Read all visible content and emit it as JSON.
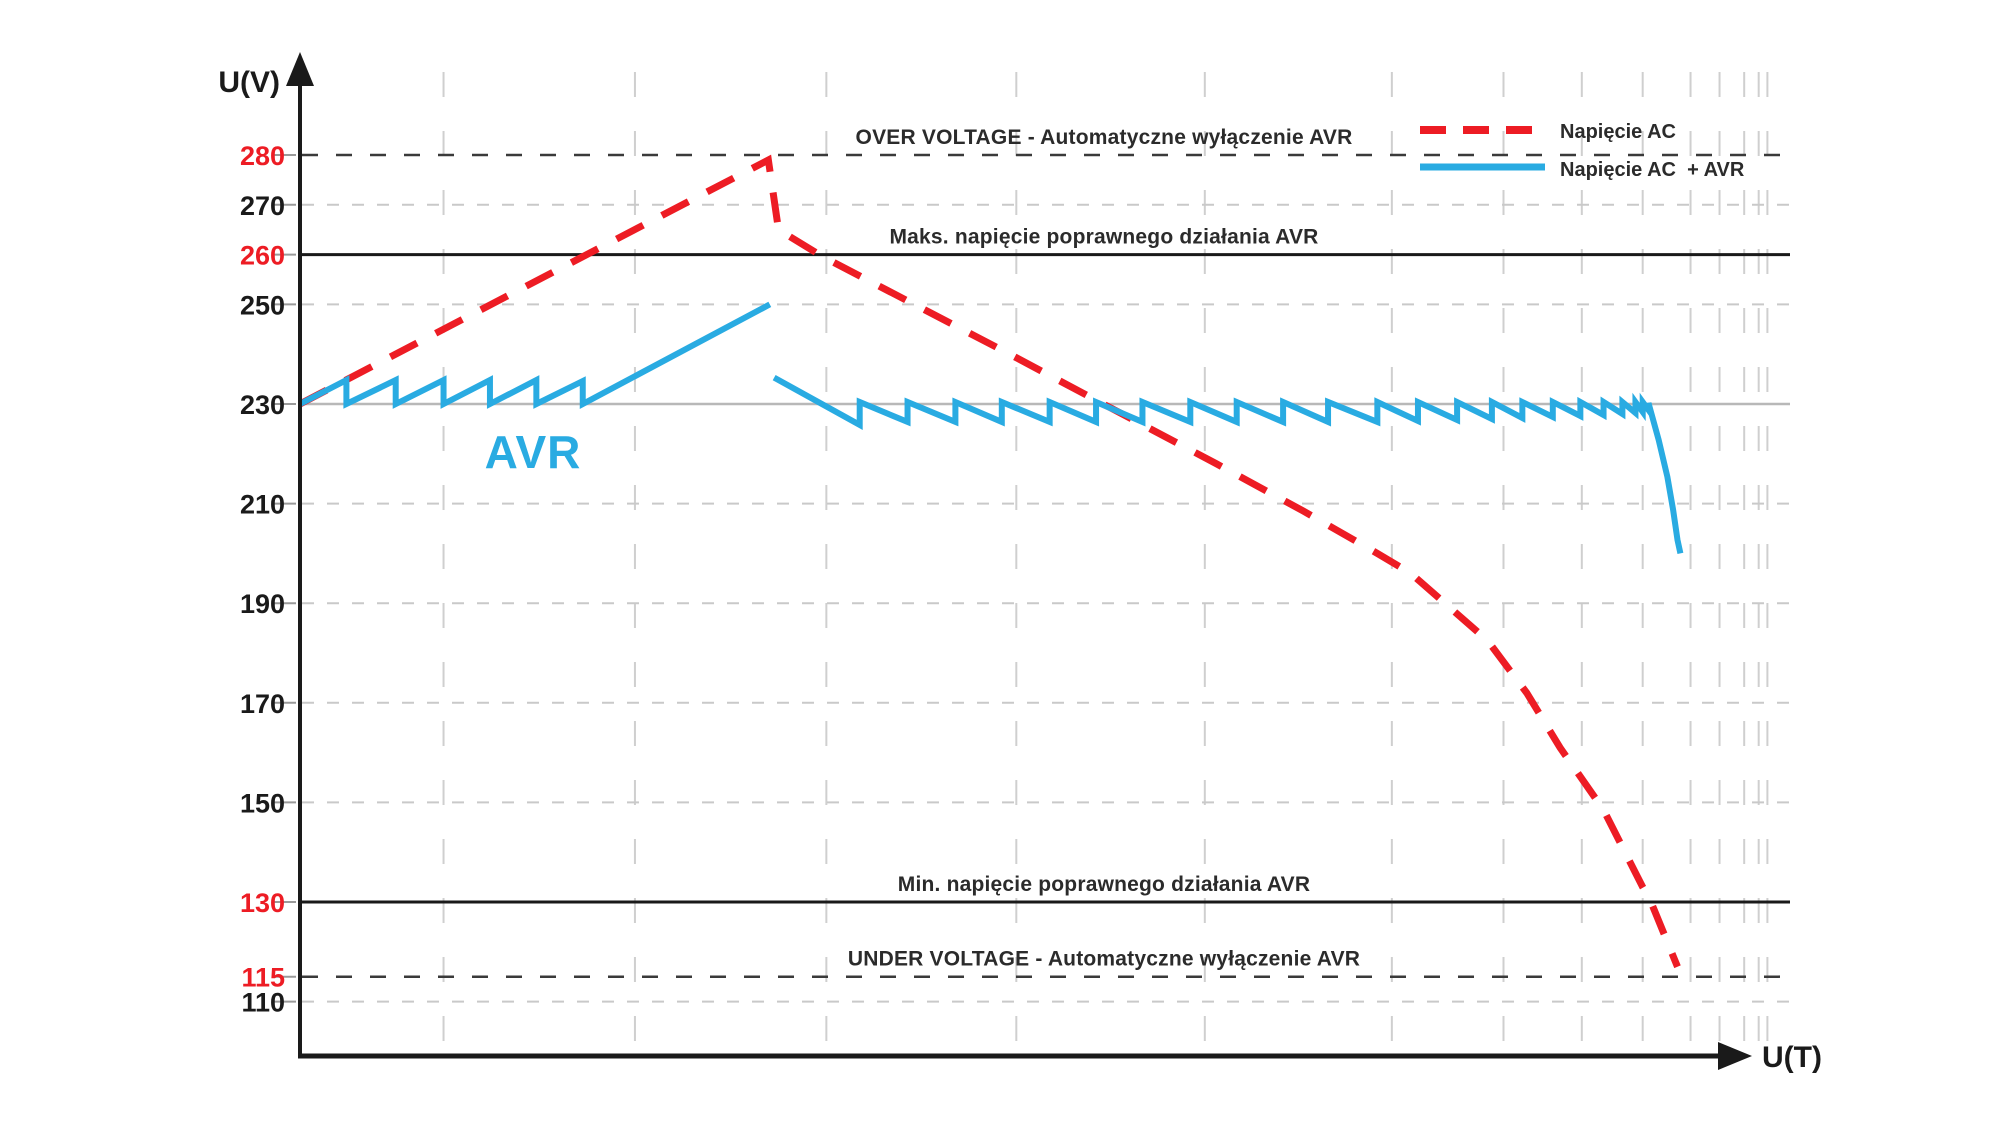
{
  "axes": {
    "y_label": "U(V)",
    "x_label": "U(T)"
  },
  "annotations": {
    "avr": "AVR"
  },
  "y_ticks": [
    {
      "v": 280,
      "red": true
    },
    {
      "v": 270,
      "red": false
    },
    {
      "v": 260,
      "red": true
    },
    {
      "v": 250,
      "red": false
    },
    {
      "v": 230,
      "red": false
    },
    {
      "v": 210,
      "red": false
    },
    {
      "v": 190,
      "red": false
    },
    {
      "v": 170,
      "red": false
    },
    {
      "v": 150,
      "red": false
    },
    {
      "v": 130,
      "red": true
    },
    {
      "v": 115,
      "red": true
    },
    {
      "v": 110,
      "red": false
    }
  ],
  "colors": {
    "ac_red": "#ED1C24",
    "avr_blue": "#29ABE2",
    "dark_line": "#1a1a1a",
    "light_grid": "#c9c9c9",
    "red_tick_label": "#ED1C24"
  },
  "chart_data": {
    "type": "line",
    "title": "",
    "xlabel": "U(T)",
    "ylabel": "U(V)",
    "x_note": "time axis unitless, plotted 0-100",
    "ylim": [
      100,
      292
    ],
    "grid": "light dashed vertical and horizontal gridlines, compressing toward right",
    "legend_position": "top-right",
    "reference_lines": [
      {
        "v": 280,
        "style": "dark-dashed",
        "label": "OVER VOLTAGE - Automatyczne wyłączenie AVR"
      },
      {
        "v": 270,
        "style": "light-dashed",
        "label": null
      },
      {
        "v": 260,
        "style": "solid-dark",
        "label": "Maks. napięcie poprawnego działania AVR"
      },
      {
        "v": 250,
        "style": "light-dashed",
        "label": null
      },
      {
        "v": 230,
        "style": "solid-light",
        "label": null
      },
      {
        "v": 210,
        "style": "light-dashed",
        "label": null
      },
      {
        "v": 190,
        "style": "light-dashed",
        "label": null
      },
      {
        "v": 170,
        "style": "light-dashed",
        "label": null
      },
      {
        "v": 150,
        "style": "light-dashed",
        "label": null
      },
      {
        "v": 130,
        "style": "solid-dark",
        "label": "Min. napięcie poprawnego działania AVR"
      },
      {
        "v": 115,
        "style": "dark-dashed",
        "label": "UNDER VOLTAGE - Automatyczne wyłączenie AVR"
      },
      {
        "v": 110,
        "style": "light-dashed",
        "label": null
      }
    ],
    "vertical_gridlines_t": [
      9.9,
      23.1,
      36.3,
      49.4,
      62.4,
      75.3,
      83.0,
      88.4,
      92.6,
      95.9,
      97.9,
      99.6,
      100.6,
      101.2
    ],
    "series": [
      {
        "name": "Napięcie AC",
        "color": "#ED1C24",
        "dashed": true,
        "segments": [
          [
            [
              0,
              230
            ],
            [
              32.3,
              279
            ],
            [
              33,
              265
            ],
            [
              36.1,
              259.5
            ],
            [
              48.3,
              241
            ],
            [
              55.4,
              230
            ],
            [
              63.2,
              218
            ],
            [
              69.2,
              208.5
            ],
            [
              74.3,
              200
            ],
            [
              76.6,
              196
            ],
            [
              81.9,
              182.5
            ],
            [
              84.6,
              172
            ],
            [
              86.9,
              161
            ],
            [
              89.9,
              148.5
            ],
            [
              92.6,
              133
            ],
            [
              93.1,
              130.5
            ],
            [
              95,
              117
            ]
          ]
        ]
      },
      {
        "name": "Napięcie AC  + AVR",
        "color": "#29ABE2",
        "dashed": false,
        "segments": [
          [
            [
              0,
              230
            ],
            [
              3.2,
              234.8
            ],
            [
              3.2,
              230
            ],
            [
              6.6,
              234.8
            ],
            [
              6.6,
              230
            ],
            [
              9.9,
              234.8
            ],
            [
              9.9,
              230
            ],
            [
              13.1,
              234.8
            ],
            [
              13.1,
              230
            ],
            [
              16.3,
              234.8
            ],
            [
              16.3,
              230
            ],
            [
              19.5,
              234.6
            ],
            [
              19.5,
              230
            ],
            [
              32.4,
              250
            ]
          ],
          [
            [
              32.7,
              235.3
            ],
            [
              38.6,
              225.8
            ],
            [
              38.6,
              230.4
            ],
            [
              41.9,
              226.4
            ],
            [
              41.9,
              230.4
            ],
            [
              45.2,
              226.4
            ],
            [
              45.2,
              230.4
            ],
            [
              48.4,
              226.4
            ],
            [
              48.4,
              230.4
            ],
            [
              51.7,
              226.4
            ],
            [
              51.7,
              230.4
            ],
            [
              54.9,
              226.4
            ],
            [
              54.9,
              230.4
            ],
            [
              58.1,
              226.4
            ],
            [
              58.1,
              230.4
            ],
            [
              61.4,
              226.4
            ],
            [
              61.4,
              230.4
            ],
            [
              64.6,
              226.4
            ],
            [
              64.6,
              230.4
            ],
            [
              67.8,
              226.4
            ],
            [
              67.8,
              230.4
            ],
            [
              70.9,
              226.4
            ],
            [
              70.9,
              230.4
            ],
            [
              74.3,
              226.4
            ],
            [
              74.3,
              230.4
            ],
            [
              77.1,
              226.6
            ],
            [
              77.1,
              230.4
            ],
            [
              79.8,
              226.8
            ],
            [
              79.8,
              230.4
            ],
            [
              82.2,
              227
            ],
            [
              82.2,
              230.4
            ],
            [
              84.3,
              227.2
            ],
            [
              84.3,
              230.4
            ],
            [
              86.4,
              227.4
            ],
            [
              86.4,
              230.4
            ],
            [
              88.3,
              227.6
            ],
            [
              88.3,
              230.4
            ],
            [
              89.9,
              227.8
            ],
            [
              89.9,
              230.4
            ],
            [
              91.2,
              228
            ],
            [
              91.2,
              230.4
            ],
            [
              92.1,
              228.2
            ],
            [
              92.1,
              230.4
            ],
            [
              92.6,
              228.4
            ],
            [
              92.6,
              230.4
            ],
            [
              93,
              228.8
            ],
            [
              93,
              230.2
            ],
            [
              93.7,
              222.8
            ],
            [
              94.3,
              215.4
            ],
            [
              94.7,
              208.7
            ],
            [
              95,
              202.7
            ],
            [
              95.2,
              200
            ]
          ]
        ]
      }
    ]
  }
}
